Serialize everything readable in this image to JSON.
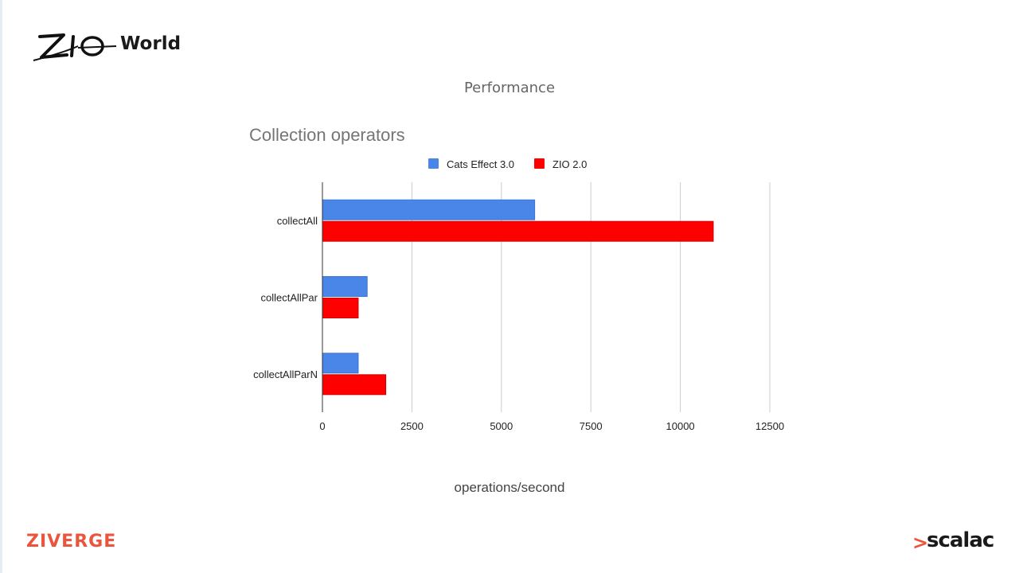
{
  "header": {
    "logo_word": "World",
    "slide_title": "Performance"
  },
  "footer": {
    "left_logo": "ZIVERGE",
    "right_logo": "scalac",
    "right_logo_mark": ">"
  },
  "colors": {
    "cats_effect": "#4a86e8",
    "zio": "#ff0000",
    "grid": "#cccccc",
    "axis": "#333333"
  },
  "chart_data": {
    "type": "bar",
    "orientation": "horizontal",
    "title": "Collection operators",
    "xlabel": "operations/second",
    "ylabel": "",
    "categories": [
      "collectAll",
      "collectAllPar",
      "collectAllParN"
    ],
    "series": [
      {
        "name": "Cats Effect 3.0",
        "values": [
          5930,
          1250,
          1000
        ]
      },
      {
        "name": "ZIO 2.0",
        "values": [
          10920,
          1000,
          1770
        ]
      }
    ],
    "xlim": [
      0,
      12500
    ],
    "xticks": [
      0,
      2500,
      5000,
      7500,
      10000,
      12500
    ],
    "grid": true,
    "legend": "top"
  }
}
